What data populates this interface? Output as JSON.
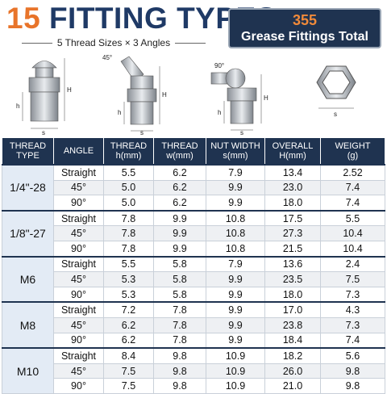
{
  "header": {
    "count": "15",
    "title": "FITTING TYPES",
    "subtitle": "5 Thread Sizes × 3 Angles",
    "badge_number": "355",
    "badge_text": "Grease Fittings Total"
  },
  "diagram": {
    "labels": {
      "angle45": "45°",
      "angle90": "90°",
      "H": "H",
      "h": "h",
      "s": "s"
    }
  },
  "table": {
    "columns": [
      [
        "THREAD",
        "TYPE"
      ],
      [
        "ANGLE",
        ""
      ],
      [
        "THREAD",
        "h(mm)"
      ],
      [
        "THREAD",
        "w(mm)"
      ],
      [
        "NUT WIDTH",
        "s(mm)"
      ],
      [
        "OVERALL",
        "H(mm)"
      ],
      [
        "WEIGHT",
        "(g)"
      ]
    ],
    "groups": [
      {
        "thread": "1/4\"-28",
        "rows": [
          [
            "Straight",
            "5.5",
            "6.2",
            "7.9",
            "13.4",
            "2.52"
          ],
          [
            "45°",
            "5.0",
            "6.2",
            "9.9",
            "23.0",
            "7.4"
          ],
          [
            "90°",
            "5.0",
            "6.2",
            "9.9",
            "18.0",
            "7.4"
          ]
        ]
      },
      {
        "thread": "1/8\"-27",
        "rows": [
          [
            "Straight",
            "7.8",
            "9.9",
            "10.8",
            "17.5",
            "5.5"
          ],
          [
            "45°",
            "7.8",
            "9.9",
            "10.8",
            "27.3",
            "10.4"
          ],
          [
            "90°",
            "7.8",
            "9.9",
            "10.8",
            "21.5",
            "10.4"
          ]
        ]
      },
      {
        "thread": "M6",
        "rows": [
          [
            "Straight",
            "5.5",
            "5.8",
            "7.9",
            "13.6",
            "2.4"
          ],
          [
            "45°",
            "5.3",
            "5.8",
            "9.9",
            "23.5",
            "7.5"
          ],
          [
            "90°",
            "5.3",
            "5.8",
            "9.9",
            "18.0",
            "7.3"
          ]
        ]
      },
      {
        "thread": "M8",
        "rows": [
          [
            "Straight",
            "7.2",
            "7.8",
            "9.9",
            "17.0",
            "4.3"
          ],
          [
            "45°",
            "6.2",
            "7.8",
            "9.9",
            "23.8",
            "7.3"
          ],
          [
            "90°",
            "6.2",
            "7.8",
            "9.9",
            "18.4",
            "7.4"
          ]
        ]
      },
      {
        "thread": "M10",
        "rows": [
          [
            "Straight",
            "8.4",
            "9.8",
            "10.9",
            "18.2",
            "5.6"
          ],
          [
            "45°",
            "7.5",
            "9.8",
            "10.9",
            "26.0",
            "9.8"
          ],
          [
            "90°",
            "7.5",
            "9.8",
            "10.9",
            "21.0",
            "9.8"
          ]
        ]
      }
    ]
  }
}
